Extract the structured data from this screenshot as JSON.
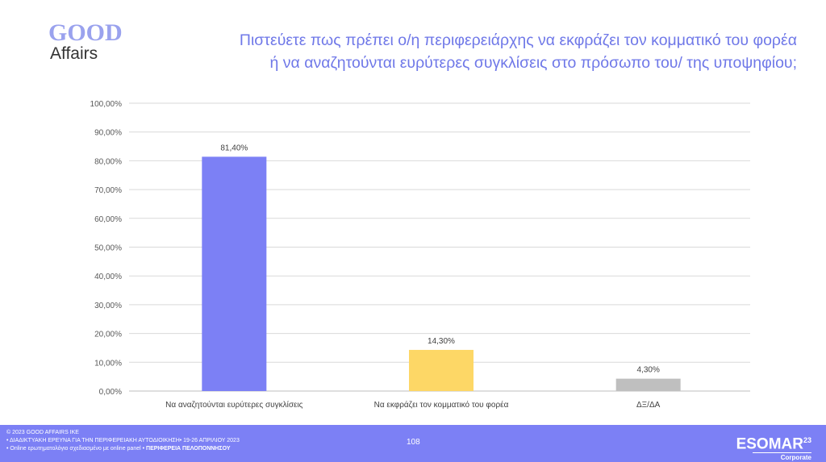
{
  "logo": {
    "line1": "GOOD",
    "line2": "Affairs"
  },
  "title": {
    "line1": "Πιστεύετε πως πρέπει ο/η περιφερειάρχης  να εκφράζει τον κομματικό του φορέα",
    "line2": "ή να αναζητούνται ευρύτερες συγκλίσεις στο πρόσωπο του/ της υποψηφίου;"
  },
  "chart_data": {
    "type": "bar",
    "title": "Πιστεύετε πως πρέπει ο/η περιφερειάρχης να εκφράζει τον κομματικό του φορέα ή να αναζητούνται ευρύτερες συγκλίσεις στο πρόσωπο του/ της υποψηφίου;",
    "categories": [
      "Να αναζητούνται ευρύτερες συγκλίσεις",
      "Να εκφράζει τον κομματικό του φορέα",
      "ΔΞ/ΔΑ"
    ],
    "values": [
      81.4,
      14.3,
      4.3
    ],
    "data_labels": [
      "81,40%",
      "14,30%",
      "4,30%"
    ],
    "colors": [
      "#7c80f5",
      "#fdd766",
      "#bfbfbf"
    ],
    "ylim": [
      0,
      100
    ],
    "yticks": [
      "0,00%",
      "10,00%",
      "20,00%",
      "30,00%",
      "40,00%",
      "50,00%",
      "60,00%",
      "70,00%",
      "80,00%",
      "90,00%",
      "100,00%"
    ],
    "grid": true,
    "xlabel": "",
    "ylabel": ""
  },
  "footer": {
    "copyright": "© 2023 GOOD AFFAIRS IKE",
    "line2": "• ΔΙΑΔΙΚΤΥΑΚΗ ΕΡΕΥΝΑ  ΓΙΑ ΤΗΝ ΠΕΡΙΦΕΡΕΙΑΚΗ ΑΥΤΟΔΙΟΙΚΗΣΗ• 19-26 ΑΠΡΙΛΙΟΥ 2023",
    "line3a": "• Online ερωτηματολόγιο σχεδιασμένο με online panel  •",
    "line3b": "ΠΕΡΙΦΕΡΕΙΑ ΠΕΛΟΠΟΝΝΗΣΟΥ",
    "page": "108",
    "esomar": "ESOMAR",
    "esomar_sup": "23",
    "corporate": "Corporate"
  }
}
